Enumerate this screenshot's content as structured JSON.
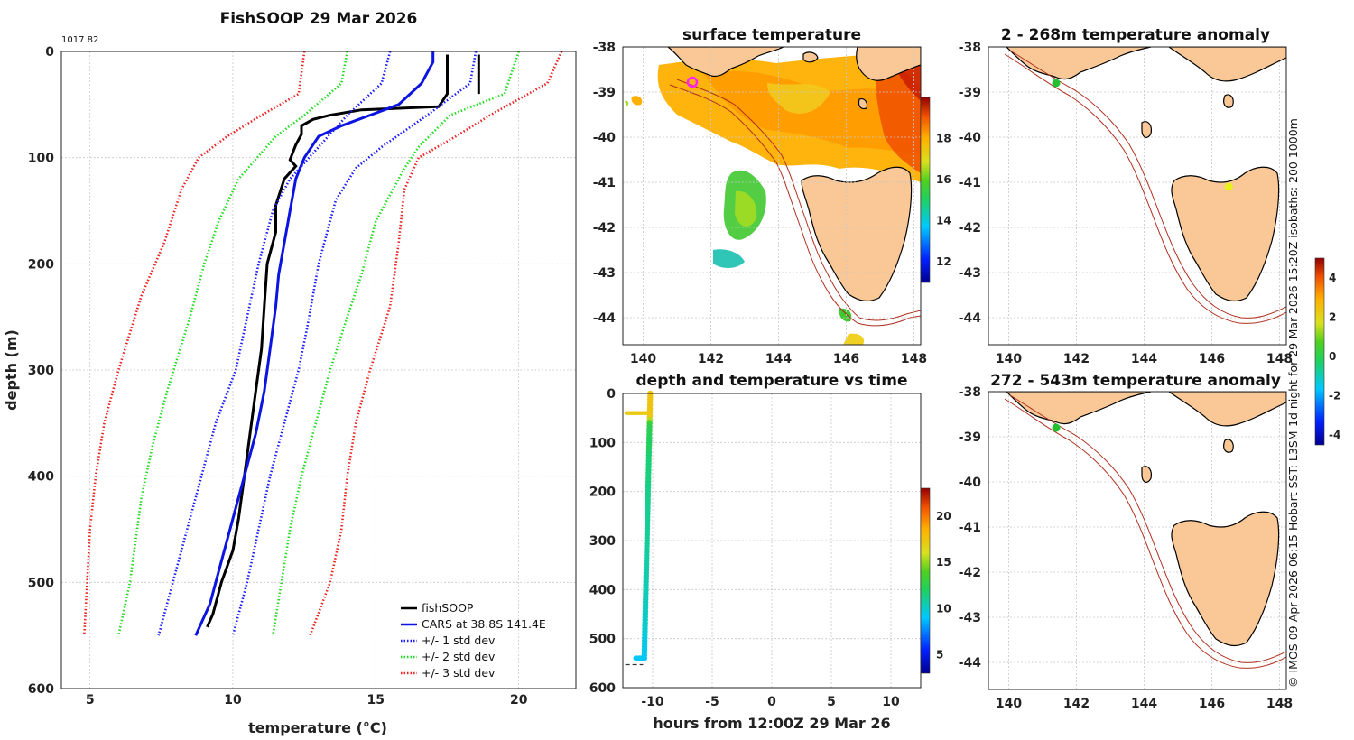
{
  "chart_data": [
    {
      "type": "line",
      "id": "profile",
      "title": "FishSOOP 29 Mar 2026",
      "annotation": "1017 82",
      "xlabel": "temperature (°C)",
      "ylabel": "depth (m)",
      "xlim": [
        4,
        22
      ],
      "ylim": [
        600,
        0
      ],
      "xticks": [
        "5",
        "10",
        "15",
        "20"
      ],
      "yticks": [
        "0",
        "100",
        "200",
        "300",
        "400",
        "500",
        "600"
      ],
      "grid": true,
      "legend_position": "bottom-right",
      "legend": [
        "fishSOOP",
        "CARS at 38.8S 141.4E",
        "+/- 1 std dev",
        "+/- 2 std dev",
        "+/- 3 std dev"
      ],
      "colors": [
        "#000000",
        "#0b14e0",
        "#1a1aff",
        "#22dd22",
        "#ee2222"
      ],
      "series": [
        {
          "name": "fishSOOP",
          "points": [
            [
              17.5,
              3
            ],
            [
              17.5,
              40
            ],
            [
              17.2,
              52
            ],
            [
              14.5,
              55
            ],
            [
              13.4,
              60
            ],
            [
              12.8,
              64
            ],
            [
              12.4,
              70
            ],
            [
              12.4,
              78
            ],
            [
              12.2,
              88
            ],
            [
              12.0,
              102
            ],
            [
              12.2,
              108
            ],
            [
              11.8,
              120
            ],
            [
              11.5,
              145
            ],
            [
              11.5,
              170
            ],
            [
              11.2,
              200
            ],
            [
              11.1,
              240
            ],
            [
              11.0,
              280
            ],
            [
              10.8,
              320
            ],
            [
              10.6,
              360
            ],
            [
              10.4,
              400
            ],
            [
              10.2,
              440
            ],
            [
              10.0,
              470
            ],
            [
              9.6,
              500
            ],
            [
              9.3,
              530
            ],
            [
              9.1,
              542
            ]
          ]
        },
        {
          "name": "fishSOOP",
          "points": [
            [
              18.6,
              3
            ],
            [
              18.6,
              40
            ]
          ]
        },
        {
          "name": "CARS at 38.8S 141.4E",
          "points": [
            [
              17.0,
              0
            ],
            [
              17.0,
              10
            ],
            [
              16.6,
              30
            ],
            [
              15.8,
              50
            ],
            [
              14.8,
              60
            ],
            [
              13.8,
              70
            ],
            [
              13.0,
              80
            ],
            [
              12.5,
              100
            ],
            [
              12.2,
              120
            ],
            [
              12.0,
              150
            ],
            [
              11.8,
              180
            ],
            [
              11.6,
              210
            ],
            [
              11.5,
              240
            ],
            [
              11.3,
              280
            ],
            [
              11.1,
              320
            ],
            [
              10.8,
              360
            ],
            [
              10.4,
              400
            ],
            [
              10.0,
              440
            ],
            [
              9.6,
              480
            ],
            [
              9.2,
              520
            ],
            [
              8.7,
              550
            ]
          ]
        },
        {
          "name": "+/- 1 std dev",
          "points": [
            [
              15.5,
              0
            ],
            [
              15.2,
              30
            ],
            [
              14.0,
              60
            ],
            [
              13.0,
              90
            ],
            [
              12.0,
              120
            ],
            [
              11.4,
              150
            ],
            [
              10.9,
              200
            ],
            [
              10.5,
              250
            ],
            [
              10.1,
              300
            ],
            [
              9.4,
              350
            ],
            [
              8.9,
              400
            ],
            [
              8.4,
              450
            ],
            [
              7.9,
              500
            ],
            [
              7.4,
              550
            ]
          ]
        },
        {
          "name": "+/- 1 std dev",
          "points": [
            [
              18.5,
              0
            ],
            [
              18.3,
              30
            ],
            [
              16.8,
              60
            ],
            [
              15.2,
              90
            ],
            [
              14.3,
              110
            ],
            [
              13.6,
              140
            ],
            [
              13.0,
              200
            ],
            [
              12.6,
              260
            ],
            [
              12.3,
              300
            ],
            [
              11.8,
              350
            ],
            [
              11.3,
              400
            ],
            [
              10.9,
              450
            ],
            [
              10.5,
              500
            ],
            [
              10.0,
              550
            ]
          ]
        },
        {
          "name": "+/- 2 std dev",
          "points": [
            [
              14.0,
              0
            ],
            [
              13.8,
              30
            ],
            [
              12.5,
              60
            ],
            [
              11.5,
              80
            ],
            [
              10.2,
              120
            ],
            [
              9.5,
              160
            ],
            [
              9.0,
              200
            ],
            [
              8.5,
              250
            ],
            [
              7.7,
              320
            ],
            [
              7.2,
              370
            ],
            [
              6.8,
              420
            ],
            [
              6.4,
              500
            ],
            [
              6.0,
              550
            ]
          ]
        },
        {
          "name": "+/- 2 std dev",
          "points": [
            [
              20.0,
              0
            ],
            [
              19.5,
              40
            ],
            [
              17.6,
              60
            ],
            [
              16.5,
              90
            ],
            [
              16.0,
              110
            ],
            [
              15.0,
              160
            ],
            [
              14.5,
              210
            ],
            [
              14.0,
              250
            ],
            [
              13.4,
              300
            ],
            [
              12.9,
              350
            ],
            [
              12.4,
              400
            ],
            [
              12.0,
              450
            ],
            [
              11.7,
              500
            ],
            [
              11.4,
              550
            ]
          ]
        },
        {
          "name": "+/- 3 std dev",
          "points": [
            [
              12.5,
              0
            ],
            [
              12.3,
              40
            ],
            [
              11.0,
              60
            ],
            [
              9.8,
              80
            ],
            [
              8.8,
              100
            ],
            [
              8.2,
              130
            ],
            [
              7.6,
              180
            ],
            [
              6.8,
              230
            ],
            [
              6.0,
              300
            ],
            [
              5.5,
              350
            ],
            [
              5.2,
              400
            ],
            [
              5.0,
              450
            ],
            [
              4.9,
              500
            ],
            [
              4.8,
              550
            ]
          ]
        },
        {
          "name": "+/- 3 std dev",
          "points": [
            [
              21.5,
              0
            ],
            [
              21.0,
              30
            ],
            [
              19.0,
              60
            ],
            [
              17.8,
              80
            ],
            [
              16.5,
              100
            ],
            [
              16.0,
              130
            ],
            [
              15.8,
              180
            ],
            [
              15.5,
              240
            ],
            [
              14.8,
              300
            ],
            [
              14.3,
              350
            ],
            [
              14.0,
              400
            ],
            [
              13.8,
              450
            ],
            [
              13.4,
              500
            ],
            [
              12.7,
              550
            ]
          ]
        }
      ]
    },
    {
      "type": "heatmap",
      "id": "sst",
      "title": "surface temperature",
      "xlim": [
        139.4,
        148.2
      ],
      "ylim": [
        -44.6,
        -38
      ],
      "xticks": [
        "140",
        "142",
        "144",
        "146",
        "148"
      ],
      "yticks": [
        "-38",
        "-39",
        "-40",
        "-41",
        "-42",
        "-43",
        "-44"
      ],
      "colorbar_ticks": [
        "12",
        "14",
        "16",
        "18"
      ],
      "colorbar_range": [
        11,
        20
      ],
      "marker_position": [
        141.4,
        -38.8
      ],
      "marker_color": "#ff22ff"
    },
    {
      "type": "scatter",
      "id": "anom_shallow",
      "title": "2 - 268m temperature anomaly",
      "xlim": [
        139.4,
        148.2
      ],
      "ylim": [
        -44.6,
        -38
      ],
      "xticks": [
        "140",
        "142",
        "144",
        "146",
        "148"
      ],
      "yticks": [
        "-38",
        "-39",
        "-40",
        "-41",
        "-42",
        "-43",
        "-44"
      ],
      "points": [
        {
          "lon": 141.4,
          "lat": -38.8,
          "color": "#22c030"
        },
        {
          "lon": 146.5,
          "lat": -41.1,
          "color": "#e8f020"
        }
      ]
    },
    {
      "type": "scatter",
      "id": "depth_time",
      "title": "depth and temperature vs time",
      "xlabel": "hours from 12:00Z 29 Mar 26",
      "xlim": [
        -12.5,
        12.5
      ],
      "ylim": [
        600,
        0
      ],
      "xticks": [
        "-10",
        "-5",
        "0",
        "5",
        "10"
      ],
      "yticks": [
        "0",
        "100",
        "200",
        "300",
        "400",
        "500",
        "600"
      ],
      "colorbar_ticks": [
        "5",
        "10",
        "15",
        "20"
      ],
      "colorbar_range": [
        3,
        23
      ]
    },
    {
      "type": "scatter",
      "id": "anom_deep",
      "title": "272 - 543m temperature anomaly",
      "xlim": [
        139.4,
        148.2
      ],
      "ylim": [
        -44.6,
        -38
      ],
      "xticks": [
        "140",
        "142",
        "144",
        "146",
        "148"
      ],
      "yticks": [
        "-38",
        "-39",
        "-40",
        "-41",
        "-42",
        "-43",
        "-44"
      ],
      "points": [
        {
          "lon": 141.4,
          "lat": -38.8,
          "color": "#22c030"
        }
      ]
    }
  ],
  "anomaly_colorbar": {
    "ticks": [
      "4",
      "2",
      "0",
      "-2",
      "-4"
    ],
    "range": [
      -4.5,
      5
    ]
  },
  "side_note": "© IMOS 09-Apr-2026 06:15 Hobart SST: L3SM-1d night for 29-Mar-2026 15:20Z isobaths: 200  1000m"
}
